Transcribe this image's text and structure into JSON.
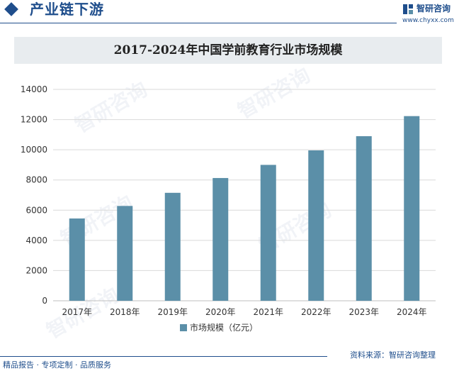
{
  "header": {
    "section_title": "产业链下游",
    "brand_name": "智研咨询",
    "brand_url": "www.chyxx.com"
  },
  "chart_data": {
    "type": "bar",
    "title": "2017-2024年中国学前教育行业市场规模",
    "categories": [
      "2017年",
      "2018年",
      "2019年",
      "2020年",
      "2021年",
      "2022年",
      "2023年",
      "2024年"
    ],
    "series": [
      {
        "name": "市场规模（亿元）",
        "values": [
          5450,
          6280,
          7150,
          8130,
          9000,
          9960,
          10900,
          12230
        ],
        "color": "#5b8fa8"
      }
    ],
    "ylim": [
      0,
      14000
    ],
    "yticks": [
      0,
      2000,
      4000,
      6000,
      8000,
      10000,
      12000,
      14000
    ],
    "grid": true,
    "legend": "bottom",
    "xlabel": "",
    "ylabel": ""
  },
  "footer": {
    "left": "精品报告 · 专项定制 · 品质服务",
    "right": "资料来源：智研咨询整理"
  },
  "watermark_text": "智研咨询",
  "colors": {
    "brand": "#1f4e8c",
    "bar": "#5b8fa8",
    "title_bg": "#e8ecef"
  }
}
